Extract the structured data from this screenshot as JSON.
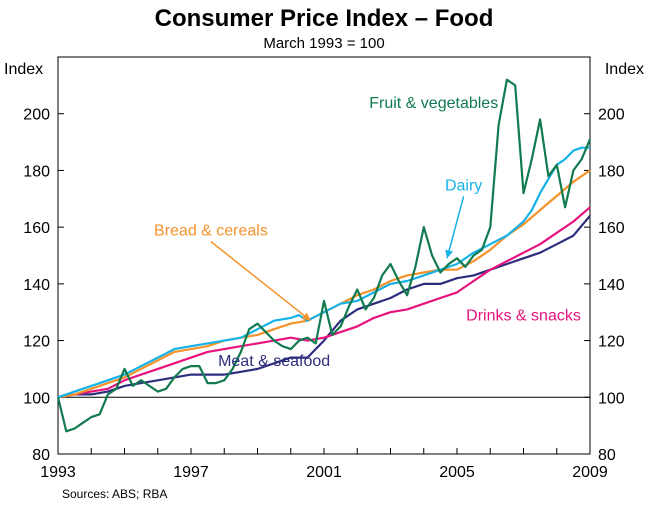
{
  "chart_data": {
    "type": "line",
    "title": "Consumer Price Index – Food",
    "subtitle": "March 1993 = 100",
    "ylabel_left": "Index",
    "ylabel_right": "Index",
    "ylim": [
      80,
      220
    ],
    "yticks": [
      80,
      100,
      120,
      140,
      160,
      180,
      200
    ],
    "xlim": [
      1993.0,
      2009.0
    ],
    "xtick_labels": [
      "1993",
      "1997",
      "2001",
      "2005",
      "2009"
    ],
    "xtick_values": [
      1993,
      1997,
      2001,
      2005,
      2009
    ],
    "reference_line": 100,
    "source": "Sources: ABS; RBA",
    "series": [
      {
        "name": "Fruit & vegetables",
        "color": "#117a4f",
        "x": [
          1993.0,
          1993.25,
          1993.5,
          1993.75,
          1994.0,
          1994.25,
          1994.5,
          1994.75,
          1995.0,
          1995.25,
          1995.5,
          1995.75,
          1996.0,
          1996.25,
          1996.5,
          1996.75,
          1997.0,
          1997.25,
          1997.5,
          1997.75,
          1998.0,
          1998.25,
          1998.5,
          1998.75,
          1999.0,
          1999.25,
          1999.5,
          1999.75,
          2000.0,
          2000.25,
          2000.5,
          2000.75,
          2001.0,
          2001.25,
          2001.5,
          2001.75,
          2002.0,
          2002.25,
          2002.5,
          2002.75,
          2003.0,
          2003.25,
          2003.5,
          2003.75,
          2004.0,
          2004.25,
          2004.5,
          2004.75,
          2005.0,
          2005.25,
          2005.5,
          2005.75,
          2006.0,
          2006.25,
          2006.5,
          2006.75,
          2007.0,
          2007.25,
          2007.5,
          2007.75,
          2008.0,
          2008.25,
          2008.5,
          2008.75,
          2009.0
        ],
        "values": [
          100,
          88,
          89,
          91,
          93,
          94,
          101,
          103,
          110,
          104,
          106,
          104,
          102,
          103,
          107,
          110,
          111,
          111,
          105,
          105,
          106,
          110,
          116,
          124,
          126,
          123,
          120,
          118,
          117,
          120,
          121,
          119,
          134,
          122,
          125,
          132,
          138,
          131,
          135,
          143,
          147,
          141,
          136,
          146,
          160,
          150,
          144,
          147,
          149,
          146,
          150,
          152,
          160,
          196,
          212,
          210,
          172,
          184,
          198,
          178,
          182,
          167,
          180,
          184,
          191
        ]
      },
      {
        "name": "Dairy",
        "color": "#15b2e8",
        "x": [
          1993.0,
          1993.5,
          1994.0,
          1994.5,
          1995.0,
          1995.5,
          1996.0,
          1996.5,
          1997.0,
          1997.5,
          1998.0,
          1998.5,
          1999.0,
          1999.5,
          2000.0,
          2000.25,
          2000.5,
          2001.0,
          2001.5,
          2002.0,
          2002.5,
          2003.0,
          2003.5,
          2004.0,
          2004.5,
          2005.0,
          2005.5,
          2006.0,
          2006.5,
          2007.0,
          2007.25,
          2007.5,
          2007.75,
          2008.0,
          2008.25,
          2008.5,
          2008.75,
          2009.0
        ],
        "values": [
          100,
          102,
          104,
          106,
          108,
          111,
          114,
          117,
          118,
          119,
          120,
          121,
          124,
          127,
          128,
          129,
          127,
          130,
          133,
          134,
          137,
          140,
          141,
          143,
          145,
          147,
          151,
          154,
          157,
          162,
          166,
          172,
          177,
          182,
          184,
          187,
          188,
          188
        ]
      },
      {
        "name": "Bread & cereals",
        "color": "#f5922a",
        "x": [
          1993.0,
          1993.5,
          1994.0,
          1994.5,
          1995.0,
          1995.5,
          1996.0,
          1996.5,
          1997.0,
          1997.5,
          1998.0,
          1998.5,
          1999.0,
          1999.5,
          2000.0,
          2000.5,
          2001.0,
          2001.5,
          2002.0,
          2002.5,
          2003.0,
          2003.5,
          2004.0,
          2004.5,
          2005.0,
          2005.5,
          2006.0,
          2006.5,
          2007.0,
          2007.5,
          2008.0,
          2008.5,
          2009.0
        ],
        "values": [
          100,
          101,
          103,
          105,
          107,
          110,
          113,
          116,
          117,
          118,
          120,
          121,
          122,
          124,
          126,
          127,
          130,
          133,
          136,
          138,
          141,
          143,
          144,
          145,
          145,
          148,
          152,
          157,
          161,
          166,
          171,
          176,
          180
        ]
      },
      {
        "name": "Drinks & snacks",
        "color": "#e6137f",
        "x": [
          1993.0,
          1993.5,
          1994.0,
          1994.5,
          1995.0,
          1995.5,
          1996.0,
          1996.5,
          1997.0,
          1997.5,
          1998.0,
          1998.5,
          1999.0,
          1999.5,
          2000.0,
          2000.5,
          2001.0,
          2001.5,
          2002.0,
          2002.5,
          2003.0,
          2003.5,
          2004.0,
          2004.5,
          2005.0,
          2005.5,
          2006.0,
          2006.5,
          2007.0,
          2007.5,
          2008.0,
          2008.5,
          2009.0
        ],
        "values": [
          100,
          101,
          102,
          103,
          106,
          108,
          110,
          112,
          114,
          116,
          117,
          118,
          119,
          120,
          121,
          120,
          121,
          123,
          125,
          128,
          130,
          131,
          133,
          135,
          137,
          141,
          145,
          148,
          151,
          154,
          158,
          162,
          167
        ]
      },
      {
        "name": "Meat & seafood",
        "color": "#2d2d7e",
        "x": [
          1993.0,
          1993.5,
          1994.0,
          1994.5,
          1995.0,
          1995.5,
          1996.0,
          1996.5,
          1997.0,
          1997.5,
          1998.0,
          1998.5,
          1999.0,
          1999.5,
          2000.0,
          2000.5,
          2001.0,
          2001.5,
          2002.0,
          2002.5,
          2003.0,
          2003.5,
          2004.0,
          2004.5,
          2005.0,
          2005.5,
          2006.0,
          2006.5,
          2007.0,
          2007.5,
          2008.0,
          2008.5,
          2009.0
        ],
        "values": [
          100,
          101,
          101,
          102,
          104,
          105,
          106,
          107,
          108,
          108,
          108,
          109,
          110,
          112,
          114,
          114,
          120,
          127,
          131,
          133,
          135,
          138,
          140,
          140,
          142,
          143,
          145,
          147,
          149,
          151,
          154,
          157,
          164
        ]
      }
    ],
    "annotations": [
      {
        "text": "Fruit & vegetables",
        "series": "Fruit & vegetables",
        "at_x": 2004.3,
        "at_y": 202,
        "arrow": false
      },
      {
        "text": "Dairy",
        "series": "Dairy",
        "at_x": 2005.2,
        "at_y": 173,
        "arrow_to": [
          2004.7,
          149
        ]
      },
      {
        "text": "Bread & cereals",
        "series": "Bread & cereals",
        "at_x": 1997.6,
        "at_y": 157,
        "arrow_to": [
          2000.6,
          127
        ]
      },
      {
        "text": "Drinks & snacks",
        "series": "Drinks & snacks",
        "at_x": 2007.0,
        "at_y": 127,
        "arrow": false
      },
      {
        "text": "Meat & seafood",
        "series": "Meat & seafood",
        "at_x": 1999.5,
        "at_y": 111,
        "arrow": false
      }
    ]
  }
}
